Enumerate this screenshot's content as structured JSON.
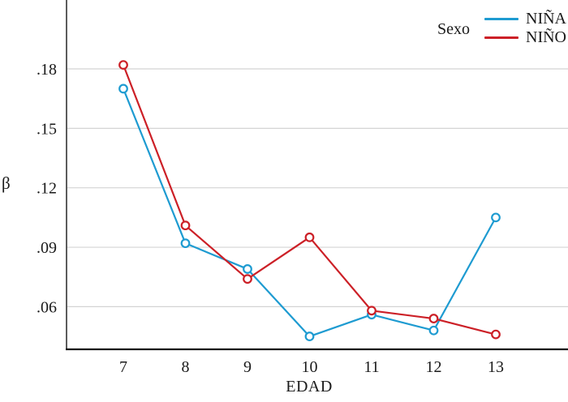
{
  "figure": {
    "ylabel": "β",
    "xlabel": "EDAD",
    "legend": {
      "title": "Sexo",
      "items": [
        {
          "label": "NIÑA",
          "color": "#1E9BD1"
        },
        {
          "label": "NIÑO",
          "color": "#CC2027"
        }
      ]
    }
  },
  "chart_data": {
    "type": "line",
    "title": "",
    "xlabel": "EDAD",
    "ylabel": "β",
    "x": [
      7,
      8,
      9,
      10,
      11,
      12,
      13
    ],
    "series": [
      {
        "name": "NIÑA",
        "color": "#1E9BD1",
        "marker": "open-circle",
        "values": [
          0.17,
          0.092,
          0.079,
          0.045,
          0.056,
          0.048,
          0.105
        ]
      },
      {
        "name": "NIÑO",
        "color": "#CC2027",
        "marker": "open-circle",
        "values": [
          0.182,
          0.101,
          0.074,
          0.095,
          0.058,
          0.054,
          0.046
        ]
      }
    ],
    "yticks": [
      0.06,
      0.09,
      0.12,
      0.15,
      0.18
    ],
    "ytick_labels": [
      ".06",
      ".09",
      ".12",
      ".15",
      ".18"
    ],
    "ylim": [
      0.038,
      0.215
    ],
    "grid": "horizontal-only",
    "legend_title": "Sexo",
    "legend_position": "top-right"
  },
  "colors": {
    "grid_line": "#d4d4d4",
    "y_axis_line": "#5c5c5c",
    "x_axis_line": "#141414",
    "tick_text": "#1a1a1a",
    "marker_fill": "#ffffff"
  }
}
